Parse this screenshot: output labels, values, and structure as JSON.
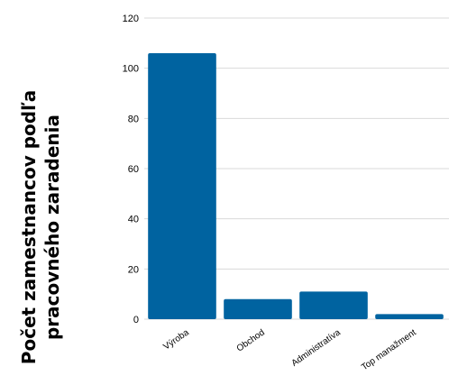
{
  "chart_data": {
    "type": "bar",
    "title": "",
    "ylabel": [
      "Počet zamestnancov podľa",
      "pracovného zaradenia"
    ],
    "xlabel": "",
    "categories": [
      "Výroba",
      "Obchod",
      "Administratíva",
      "Top manažment"
    ],
    "values": [
      106,
      8,
      11,
      2
    ],
    "ylim": [
      0,
      120
    ],
    "yticks": [
      0,
      20,
      40,
      60,
      80,
      100,
      120
    ],
    "grid": true,
    "legend": "none",
    "bar_color": "#0063a0",
    "grid_color": "#d9d9d9"
  }
}
